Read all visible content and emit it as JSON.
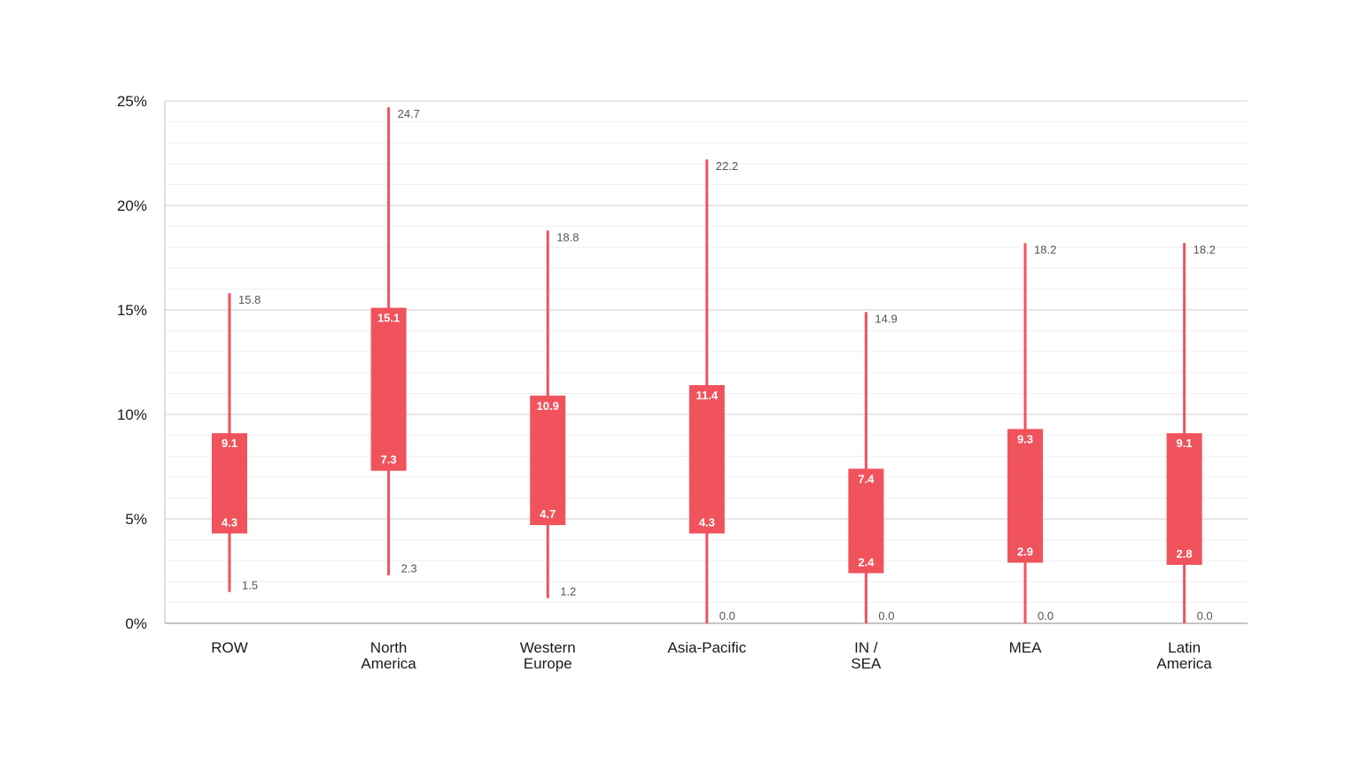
{
  "chart_data": {
    "type": "box",
    "title": "",
    "xlabel": "",
    "ylabel": "",
    "ylim": [
      0,
      25
    ],
    "y_ticks": [
      "0%",
      "5%",
      "10%",
      "15%",
      "20%",
      "25%"
    ],
    "y_tick_values": [
      0,
      5,
      10,
      15,
      20,
      25
    ],
    "grid": true,
    "minor_grid_step": 1,
    "color": "#f0535c",
    "categories": [
      {
        "label": [
          "ROW"
        ],
        "min": 1.5,
        "q1": 4.3,
        "q3": 9.1,
        "max": 15.8,
        "min_label": "1.5",
        "q1_label": "4.3",
        "q3_label": "9.1",
        "max_label": "15.8"
      },
      {
        "label": [
          "North",
          "America"
        ],
        "min": 2.3,
        "q1": 7.3,
        "q3": 15.1,
        "max": 24.7,
        "min_label": "2.3",
        "q1_label": "7.3",
        "q3_label": "15.1",
        "max_label": "24.7"
      },
      {
        "label": [
          "Western",
          "Europe"
        ],
        "min": 1.2,
        "q1": 4.7,
        "q3": 10.9,
        "max": 18.8,
        "min_label": "1.2",
        "q1_label": "4.7",
        "q3_label": "10.9",
        "max_label": "18.8"
      },
      {
        "label": [
          "Asia-Pacific"
        ],
        "min": 0.0,
        "q1": 4.3,
        "q3": 11.4,
        "max": 22.2,
        "min_label": "0.0",
        "q1_label": "4.3",
        "q3_label": "11.4",
        "max_label": "22.2"
      },
      {
        "label": [
          "IN /",
          "SEA"
        ],
        "min": 0.0,
        "q1": 2.4,
        "q3": 7.4,
        "max": 14.9,
        "min_label": "0.0",
        "q1_label": "2.4",
        "q3_label": "7.4",
        "max_label": "14.9"
      },
      {
        "label": [
          "MEA"
        ],
        "min": 0.0,
        "q1": 2.9,
        "q3": 9.3,
        "max": 18.2,
        "min_label": "0.0",
        "q1_label": "2.9",
        "q3_label": "9.3",
        "max_label": "18.2"
      },
      {
        "label": [
          "Latin",
          "America"
        ],
        "min": 0.0,
        "q1": 2.8,
        "q3": 9.1,
        "max": 18.2,
        "min_label": "0.0",
        "q1_label": "2.8",
        "q3_label": "9.1",
        "max_label": "18.2"
      }
    ]
  }
}
